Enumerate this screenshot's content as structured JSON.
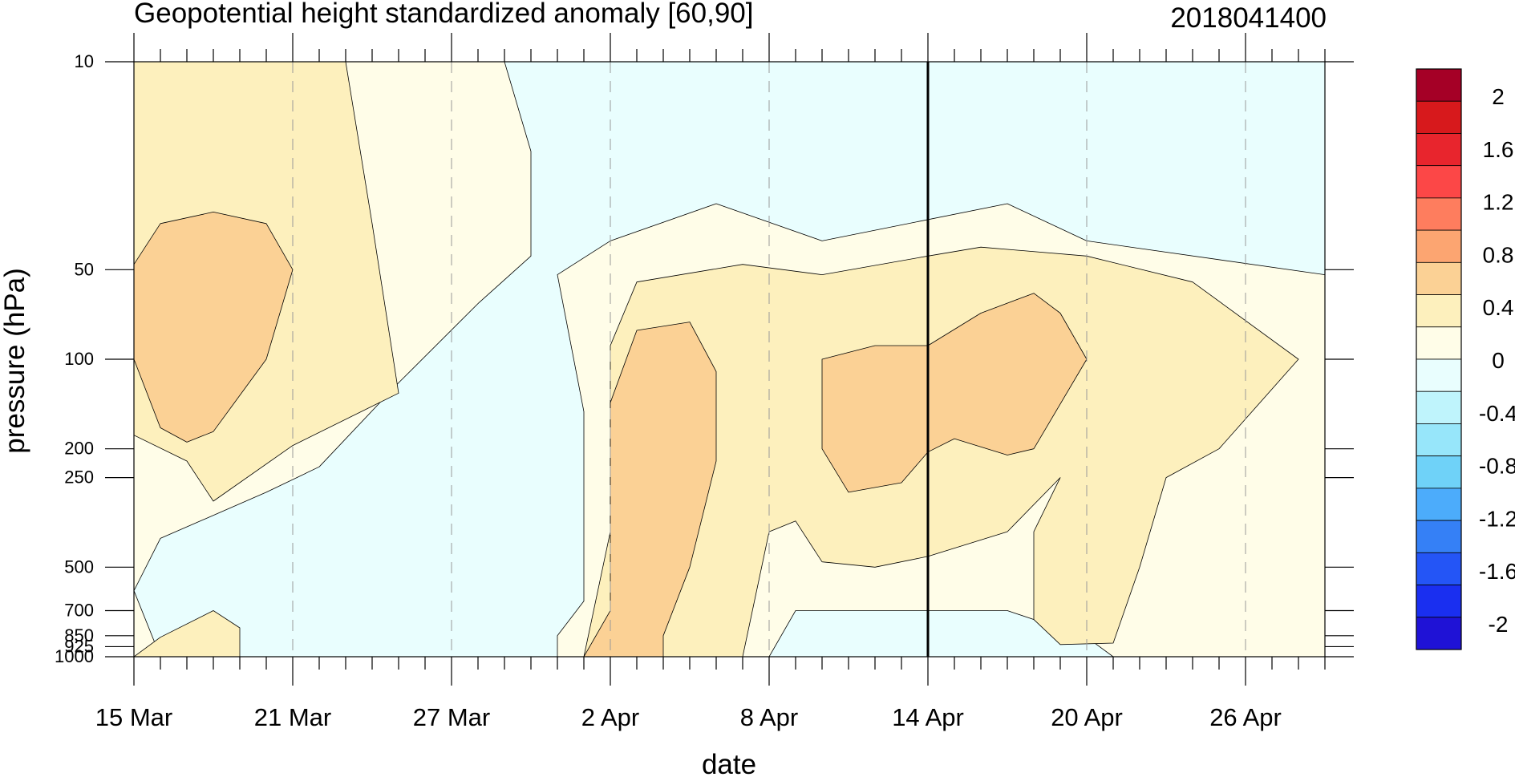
{
  "chart_data": {
    "type": "contour",
    "title": "Geopotential height standardized anomaly [60,90]",
    "stamp": "2018041400",
    "xlabel": "date",
    "ylabel": "pressure (hPa)",
    "x_range": [
      "2018-03-15",
      "2018-04-29"
    ],
    "y_scale": "log",
    "y_reversed": true,
    "ylim": [
      1000,
      10
    ],
    "x_ticks": [
      {
        "date": "2018-03-15",
        "label": "15 Mar"
      },
      {
        "date": "2018-03-21",
        "label": "21 Mar"
      },
      {
        "date": "2018-03-27",
        "label": "27 Mar"
      },
      {
        "date": "2018-04-02",
        "label": "2 Apr"
      },
      {
        "date": "2018-04-08",
        "label": "8 Apr"
      },
      {
        "date": "2018-04-14",
        "label": "14 Apr"
      },
      {
        "date": "2018-04-20",
        "label": "20 Apr"
      },
      {
        "date": "2018-04-26",
        "label": "26 Apr"
      }
    ],
    "y_ticks": [
      {
        "value": 10,
        "label": "10"
      },
      {
        "value": 50,
        "label": "50"
      },
      {
        "value": 100,
        "label": "100"
      },
      {
        "value": 200,
        "label": "200"
      },
      {
        "value": 250,
        "label": "250"
      },
      {
        "value": 500,
        "label": "500"
      },
      {
        "value": 700,
        "label": "700"
      },
      {
        "value": 850,
        "label": "850"
      },
      {
        "value": 925,
        "label": "925"
      },
      {
        "value": 1000,
        "label": "1000"
      }
    ],
    "reference_line": "2018-04-14",
    "colorbar": {
      "labels": [
        "2",
        "1.6",
        "1.2",
        "0.8",
        "0.4",
        "0",
        "-0.4",
        "-0.8",
        "-1.2",
        "-1.6",
        "-2"
      ],
      "colors": [
        "#a50026",
        "#d7191c",
        "#e8252d",
        "#fc4747",
        "#fe7d5e",
        "#fca571",
        "#fbd195",
        "#fdf0bd",
        "#fffde8",
        "#e9fefe",
        "#bff4fc",
        "#97e6fa",
        "#6fd2f8",
        "#4cacfb",
        "#3580f6",
        "#2455f6",
        "#1a2ff0",
        "#1f12d6"
      ]
    },
    "regions": [
      {
        "level": "0 to 0.4",
        "color": "#fffde8",
        "poly": [
          [
            "2018-03-15",
            10
          ],
          [
            "2018-04-29",
            10
          ],
          [
            "2018-04-29",
            1000
          ],
          [
            "2018-03-15",
            1000
          ]
        ]
      },
      {
        "level": "0 to -0.4",
        "color": "#e9fefe",
        "poly": [
          [
            "2018-03-29",
            10
          ],
          [
            "2018-04-29",
            10
          ],
          [
            "2018-04-29",
            52
          ],
          [
            "2018-04-20",
            40
          ],
          [
            "2018-04-17",
            30
          ],
          [
            "2018-04-10",
            40
          ],
          [
            "2018-04-06",
            30
          ],
          [
            "2018-04-02",
            40
          ],
          [
            "2018-03-31",
            52
          ],
          [
            "2018-04-01",
            150
          ],
          [
            "2018-04-01",
            650
          ],
          [
            "2018-03-31",
            850
          ],
          [
            "2018-03-31",
            1000
          ],
          [
            "2018-03-16",
            1000
          ],
          [
            "2018-03-15",
            600
          ],
          [
            "2018-03-16",
            400
          ],
          [
            "2018-03-20",
            280
          ],
          [
            "2018-03-22",
            230
          ],
          [
            "2018-03-25",
            120
          ],
          [
            "2018-03-28",
            65
          ],
          [
            "2018-03-30",
            45
          ],
          [
            "2018-03-30",
            20
          ]
        ]
      },
      {
        "level": "0 to -0.4",
        "color": "#e9fefe",
        "poly": [
          [
            "2018-04-08",
            1000
          ],
          [
            "2018-04-09",
            700
          ],
          [
            "2018-04-14",
            700
          ],
          [
            "2018-04-17",
            700
          ],
          [
            "2018-04-20",
            860
          ],
          [
            "2018-04-21",
            1000
          ]
        ]
      },
      {
        "level": "0.4 to 0.8",
        "color": "#fdf0bd",
        "poly": [
          [
            "2018-03-15",
            10
          ],
          [
            "2018-03-23",
            10
          ],
          [
            "2018-03-24",
            35
          ],
          [
            "2018-03-25",
            130
          ],
          [
            "2018-03-21",
            195
          ],
          [
            "2018-03-18",
            300
          ],
          [
            "2018-03-17",
            220
          ],
          [
            "2018-03-15",
            180
          ]
        ]
      },
      {
        "level": "0.4 to 0.8",
        "color": "#fdf0bd",
        "poly": [
          [
            "2018-03-15",
            1000
          ],
          [
            "2018-03-16",
            860
          ],
          [
            "2018-03-18",
            700
          ],
          [
            "2018-03-19",
            800
          ],
          [
            "2018-03-19",
            1000
          ]
        ]
      },
      {
        "level": "0.4 to 0.8",
        "color": "#fdf0bd",
        "poly": [
          [
            "2018-04-01",
            1000
          ],
          [
            "2018-04-02",
            380
          ],
          [
            "2018-04-02",
            90
          ],
          [
            "2018-04-03",
            55
          ],
          [
            "2018-04-07",
            48
          ],
          [
            "2018-04-10",
            52
          ],
          [
            "2018-04-14",
            45
          ],
          [
            "2018-04-16",
            42
          ],
          [
            "2018-04-20",
            45
          ],
          [
            "2018-04-24",
            55
          ],
          [
            "2018-04-28",
            100
          ],
          [
            "2018-04-25",
            200
          ],
          [
            "2018-04-23",
            250
          ],
          [
            "2018-04-22",
            500
          ],
          [
            "2018-04-21",
            900
          ],
          [
            "2018-04-19",
            910
          ],
          [
            "2018-04-18",
            750
          ],
          [
            "2018-04-18",
            380
          ],
          [
            "2018-04-19",
            250
          ],
          [
            "2018-04-17",
            380
          ],
          [
            "2018-04-14",
            460
          ],
          [
            "2018-04-12",
            500
          ],
          [
            "2018-04-10",
            480
          ],
          [
            "2018-04-09",
            350
          ],
          [
            "2018-04-08",
            380
          ],
          [
            "2018-04-07",
            1000
          ]
        ]
      },
      {
        "level": "0.8 to 1.2",
        "color": "#fbd195",
        "poly": [
          [
            "2018-03-15",
            48
          ],
          [
            "2018-03-16",
            35
          ],
          [
            "2018-03-18",
            32
          ],
          [
            "2018-03-20",
            35
          ],
          [
            "2018-03-21",
            50
          ],
          [
            "2018-03-20",
            100
          ],
          [
            "2018-03-18",
            175
          ],
          [
            "2018-03-17",
            190
          ],
          [
            "2018-03-16",
            170
          ],
          [
            "2018-03-15",
            100
          ]
        ]
      },
      {
        "level": "0.8 to 1.2",
        "color": "#fbd195",
        "poly": [
          [
            "2018-04-01",
            1000
          ],
          [
            "2018-04-02",
            700
          ],
          [
            "2018-04-02",
            140
          ],
          [
            "2018-04-03",
            80
          ],
          [
            "2018-04-05",
            75
          ],
          [
            "2018-04-06",
            110
          ],
          [
            "2018-04-06",
            220
          ],
          [
            "2018-04-05",
            500
          ],
          [
            "2018-04-04",
            850
          ],
          [
            "2018-04-04",
            1000
          ]
        ]
      },
      {
        "level": "0.8 to 1.2",
        "color": "#fbd195",
        "poly": [
          [
            "2018-04-10",
            100
          ],
          [
            "2018-04-12",
            90
          ],
          [
            "2018-04-14",
            90
          ],
          [
            "2018-04-16",
            70
          ],
          [
            "2018-04-18",
            60
          ],
          [
            "2018-04-19",
            70
          ],
          [
            "2018-04-20",
            100
          ],
          [
            "2018-04-18",
            200
          ],
          [
            "2018-04-17",
            210
          ],
          [
            "2018-04-15",
            185
          ],
          [
            "2018-04-14",
            205
          ],
          [
            "2018-04-13",
            260
          ],
          [
            "2018-04-11",
            280
          ],
          [
            "2018-04-10",
            200
          ]
        ]
      }
    ]
  }
}
